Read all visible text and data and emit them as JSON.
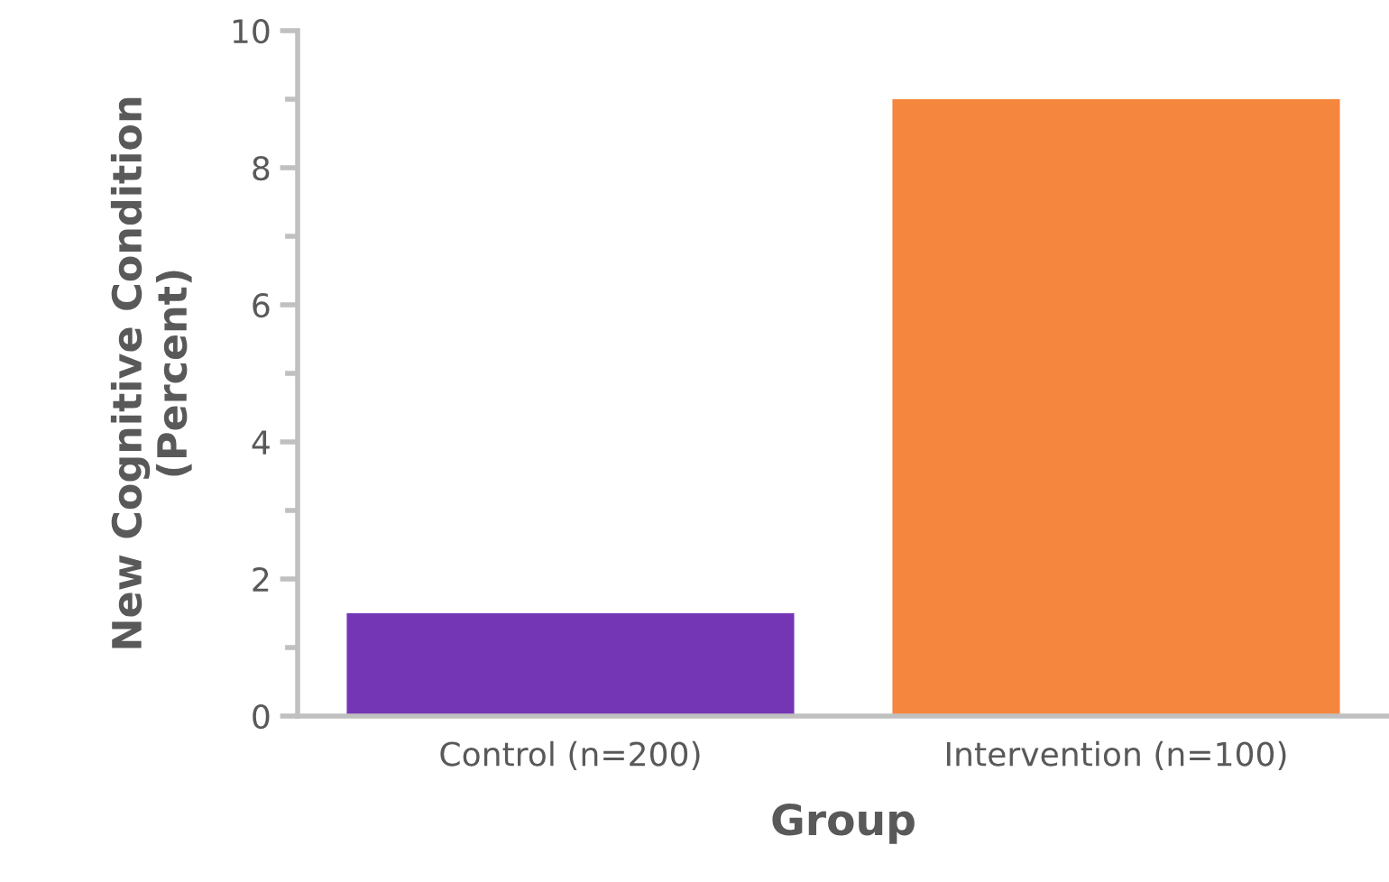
{
  "chart_data": {
    "type": "bar",
    "xlabel": "Group",
    "ylabel": "New Cognitive Condition\n(Percent)",
    "categories": [
      "Control (n=200)",
      "Intervention (n=100)"
    ],
    "values": [
      1.5,
      9
    ],
    "colors": [
      "#7536b5",
      "#f4863e"
    ],
    "ylim": [
      0,
      10
    ],
    "yticks": [
      0,
      {
        "value": 1,
        "label": null
      },
      2,
      {
        "value": 3,
        "label": null
      },
      4,
      {
        "value": 5,
        "label": null
      },
      6,
      {
        "value": 7,
        "label": null
      },
      8,
      {
        "value": 9,
        "label": null
      },
      10
    ],
    "grid": false
  }
}
